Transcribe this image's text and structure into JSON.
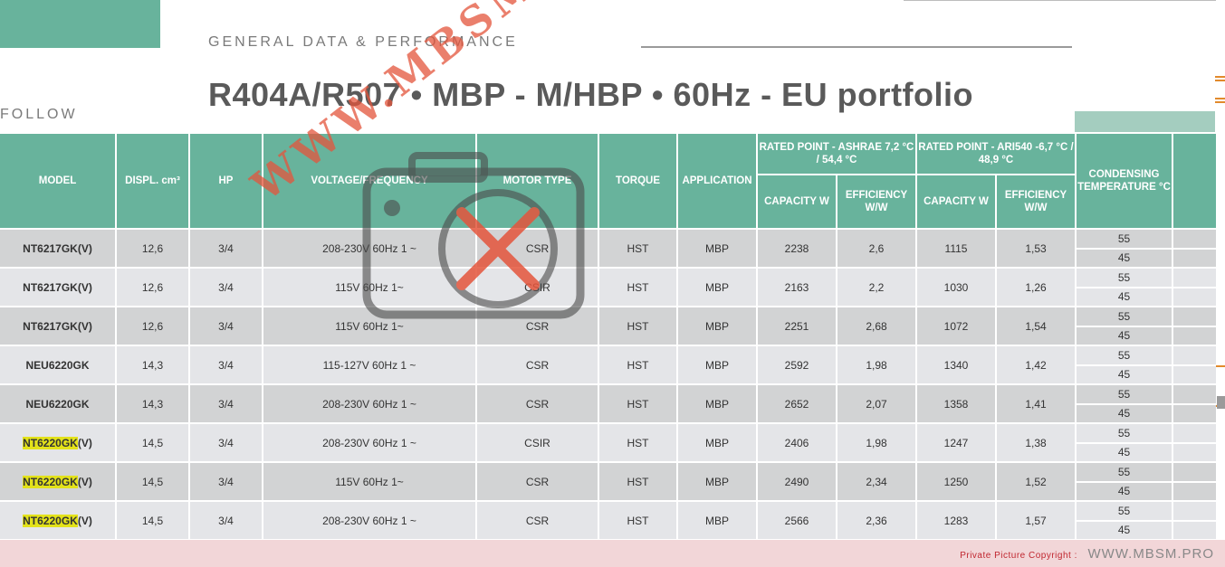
{
  "section_title": "GENERAL DATA & PERFORMANCE",
  "heading": "R404A/R507 • MBP - M/HBP • 60Hz - EU portfolio",
  "follow_label": "FOLLOW",
  "table": {
    "headers": {
      "model": "MODEL",
      "displ": "DISPL. cm³",
      "hp": "HP",
      "voltage": "VOLTAGE/FREQUENCY",
      "motor_type": "MOTOR TYPE",
      "torque": "TORQUE",
      "application": "APPLICATION",
      "ashrae_group": "RATED POINT - ASHRAE 7,2 °C / 54,4 °C",
      "ari_group": "RATED POINT - ARI540 -6,7 °C / 48,9 °C",
      "capacity": "CAPACITY W",
      "efficiency": "EFFICIENCY W/W",
      "condensing": "CONDENSING TEMPERATURE °C"
    },
    "rows": [
      {
        "model": "NT6217GK(V)",
        "displ": "12,6",
        "hp": "3/4",
        "voltage": "208-230V 60Hz 1 ~",
        "motor": "CSR",
        "torque": "HST",
        "app": "MBP",
        "cap1": "2238",
        "eff1": "2,6",
        "cap2": "1115",
        "eff2": "1,53",
        "cond_hi": "55",
        "cond_lo": "45"
      },
      {
        "model": "NT6217GK(V)",
        "displ": "12,6",
        "hp": "3/4",
        "voltage": "115V 60Hz 1~",
        "motor": "CSIR",
        "torque": "HST",
        "app": "MBP",
        "cap1": "2163",
        "eff1": "2,2",
        "cap2": "1030",
        "eff2": "1,26",
        "cond_hi": "55",
        "cond_lo": "45"
      },
      {
        "model": "NT6217GK(V)",
        "displ": "12,6",
        "hp": "3/4",
        "voltage": "115V 60Hz 1~",
        "motor": "CSR",
        "torque": "HST",
        "app": "MBP",
        "cap1": "2251",
        "eff1": "2,68",
        "cap2": "1072",
        "eff2": "1,54",
        "cond_hi": "55",
        "cond_lo": "45"
      },
      {
        "model": "NEU6220GK",
        "displ": "14,3",
        "hp": "3/4",
        "voltage": "115-127V 60Hz 1 ~",
        "motor": "CSR",
        "torque": "HST",
        "app": "MBP",
        "cap1": "2592",
        "eff1": "1,98",
        "cap2": "1340",
        "eff2": "1,42",
        "cond_hi": "55",
        "cond_lo": "45"
      },
      {
        "model": "NEU6220GK",
        "displ": "14,3",
        "hp": "3/4",
        "voltage": "208-230V 60Hz 1 ~",
        "motor": "CSR",
        "torque": "HST",
        "app": "MBP",
        "cap1": "2652",
        "eff1": "2,07",
        "cap2": "1358",
        "eff2": "1,41",
        "cond_hi": "55",
        "cond_lo": "45"
      },
      {
        "model_hl": "NT6220GK",
        "model_suffix": "(V)",
        "displ": "14,5",
        "hp": "3/4",
        "voltage": "208-230V 60Hz 1 ~",
        "motor": "CSIR",
        "torque": "HST",
        "app": "MBP",
        "cap1": "2406",
        "eff1": "1,98",
        "cap2": "1247",
        "eff2": "1,38",
        "cond_hi": "55",
        "cond_lo": "45"
      },
      {
        "model_hl": "NT6220GK",
        "model_suffix": "(V)",
        "displ": "14,5",
        "hp": "3/4",
        "voltage": "115V 60Hz 1~",
        "motor": "CSR",
        "torque": "HST",
        "app": "MBP",
        "cap1": "2490",
        "eff1": "2,34",
        "cap2": "1250",
        "eff2": "1,52",
        "cond_hi": "55",
        "cond_lo": "45"
      },
      {
        "model_hl": "NT6220GK",
        "model_suffix": "(V)",
        "displ": "14,5",
        "hp": "3/4",
        "voltage": "208-230V 60Hz 1 ~",
        "motor": "CSR",
        "torque": "HST",
        "app": "MBP",
        "cap1": "2566",
        "eff1": "2,36",
        "cap2": "1283",
        "eff2": "1,57",
        "cond_hi": "55",
        "cond_lo": "45"
      }
    ]
  },
  "watermark_text": "WWW.MBSM.PRO",
  "footer": {
    "copyright": "Private Picture Copyright :",
    "url": "WWW.MBSM.PRO"
  },
  "colors": {
    "header_green": "#68b39c",
    "row_dark": "#d2d3d4",
    "row_light": "#e4e5e8",
    "highlight": "#e3e21a",
    "footer_band": "#f2d6d8",
    "watermark": "#e4553c"
  }
}
